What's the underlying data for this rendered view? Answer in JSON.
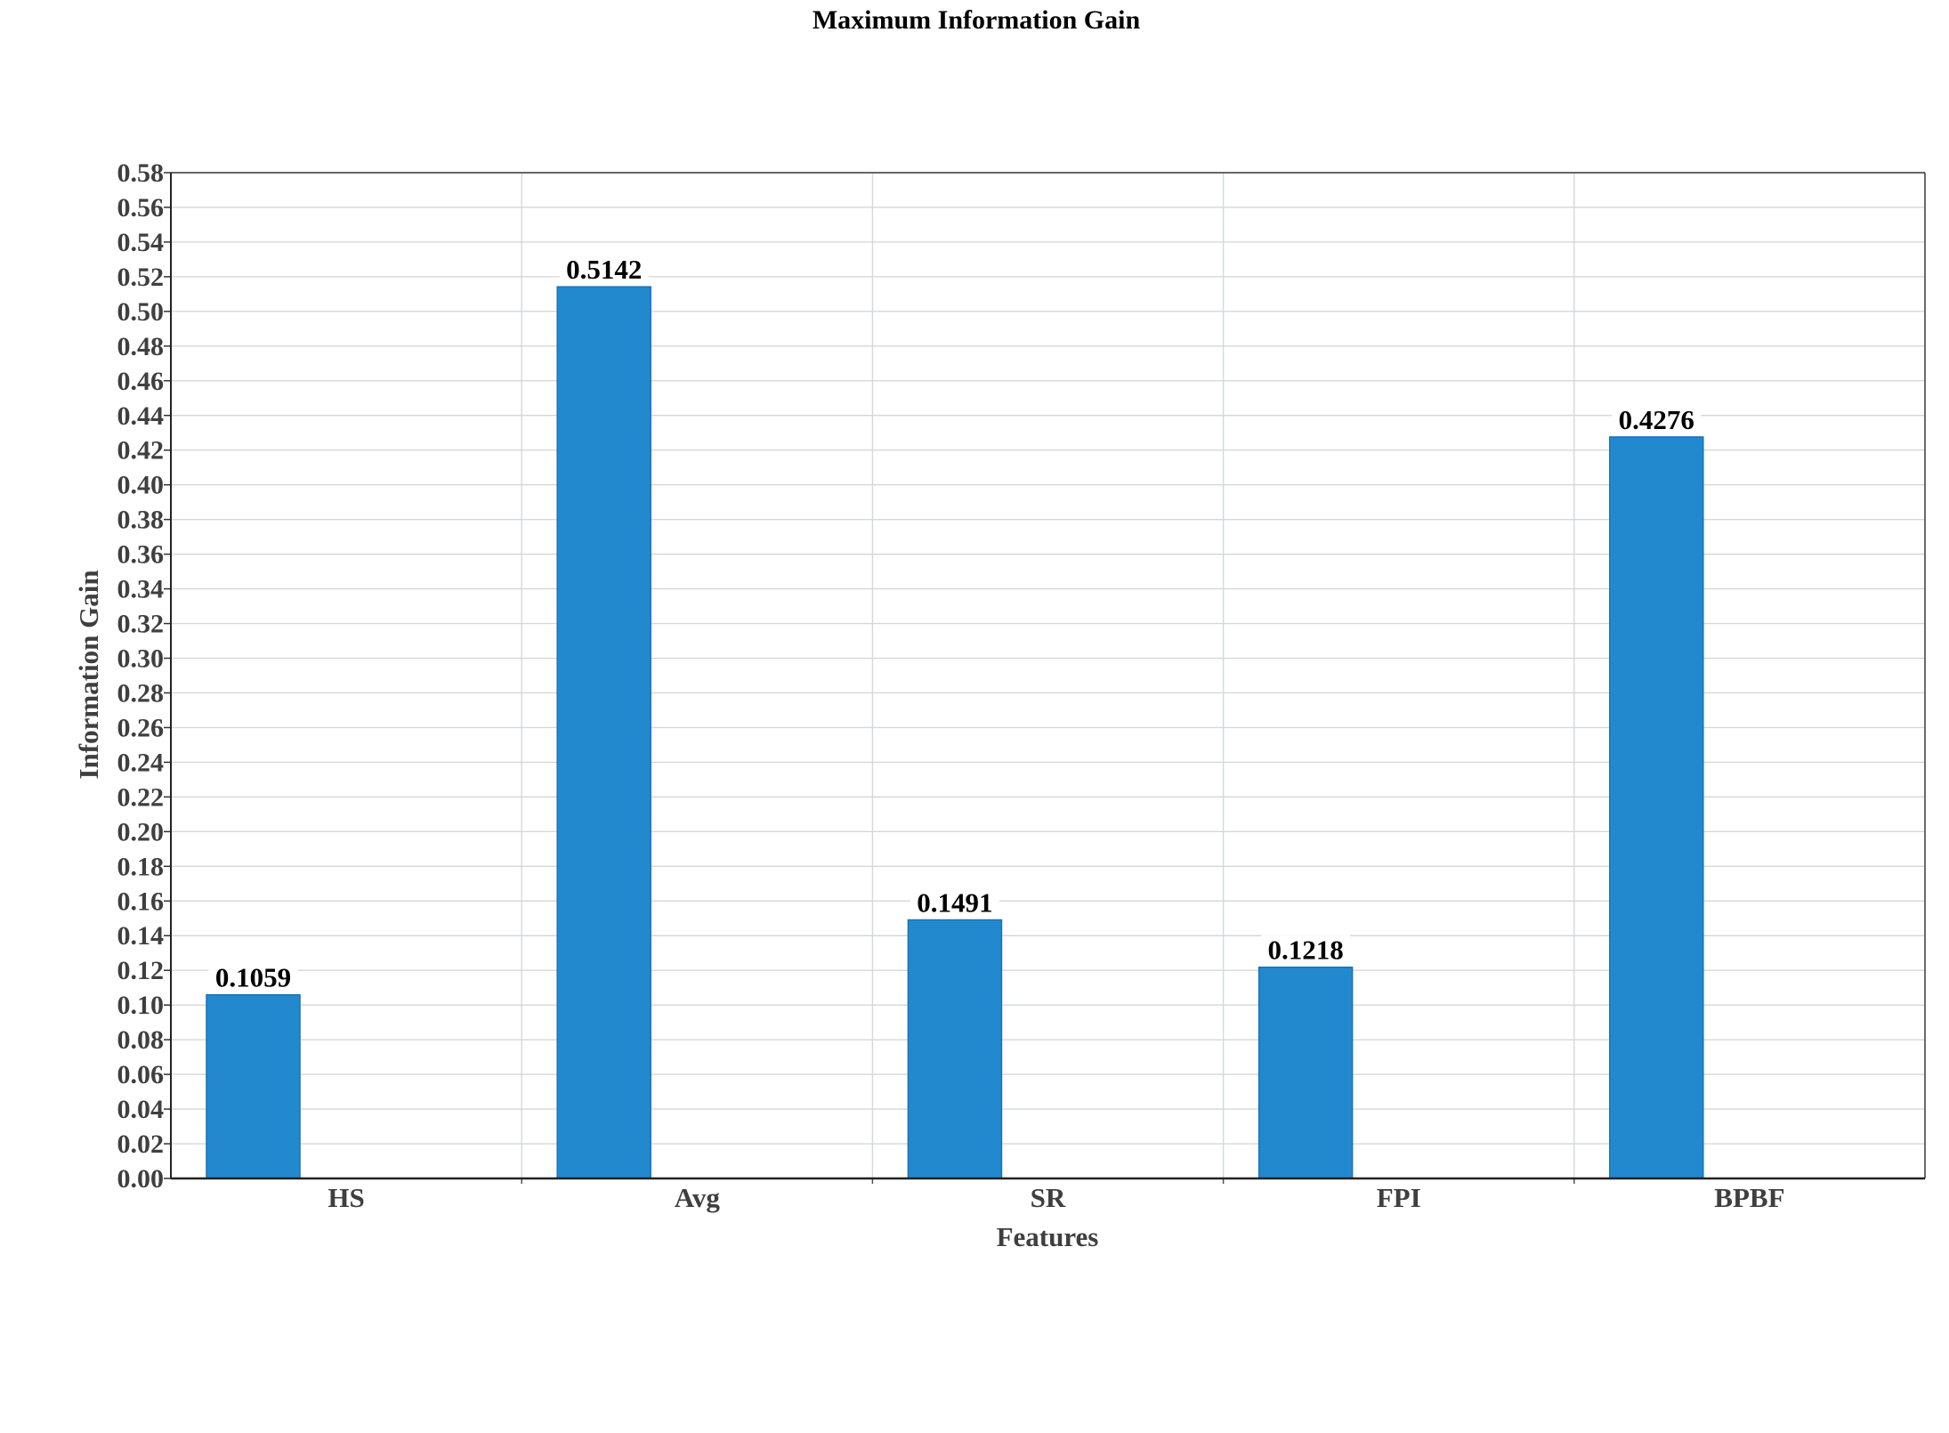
{
  "chart_data": {
    "type": "bar",
    "title": "Maximum Information Gain",
    "xlabel": "Features",
    "ylabel": "Information Gain",
    "categories": [
      "HS",
      "Avg",
      "SR",
      "FPI",
      "BPBF"
    ],
    "values": [
      0.1059,
      0.5142,
      0.1491,
      0.1218,
      0.4276
    ],
    "value_labels": [
      "0.1059",
      "0.5142",
      "0.1491",
      "0.1218",
      "0.4276"
    ],
    "ylim": [
      0,
      0.58
    ],
    "ytick_step": 0.02,
    "yticks": [
      "0.00",
      "0.02",
      "0.04",
      "0.06",
      "0.08",
      "0.10",
      "0.12",
      "0.14",
      "0.16",
      "0.18",
      "0.20",
      "0.22",
      "0.24",
      "0.26",
      "0.28",
      "0.30",
      "0.32",
      "0.34",
      "0.36",
      "0.38",
      "0.40",
      "0.42",
      "0.44",
      "0.46",
      "0.48",
      "0.50",
      "0.52",
      "0.54",
      "0.56",
      "0.58"
    ],
    "grid": true,
    "bar_color": "#2289cf"
  }
}
